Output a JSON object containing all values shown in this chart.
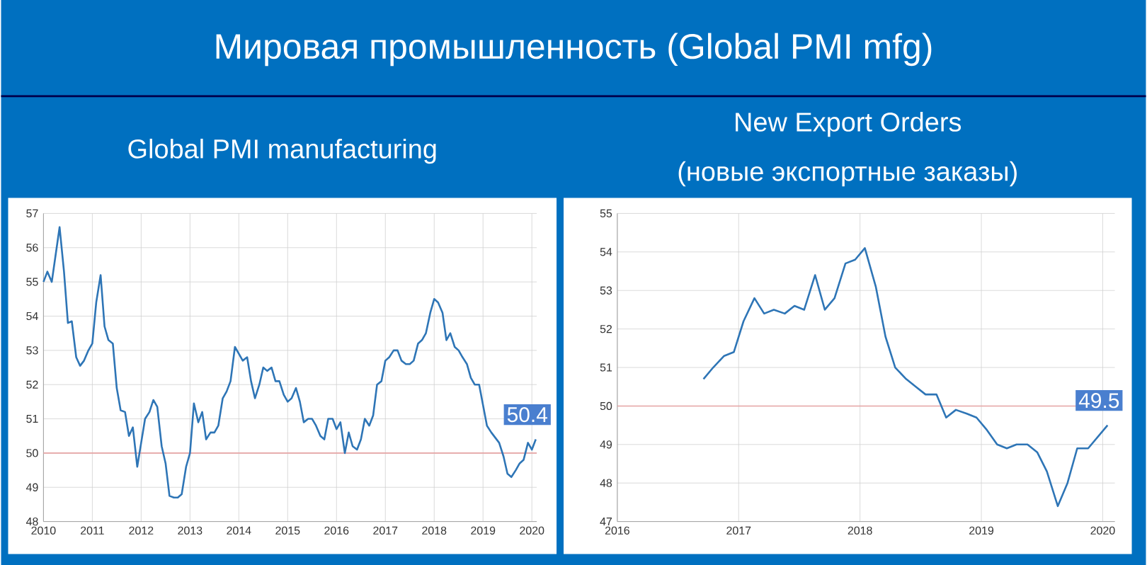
{
  "chart_data": [
    {
      "type": "line",
      "title": "Мировая промышленность (Global PMI mfg)",
      "subtitle": "Global PMI manufacturing",
      "x": [
        2010.0,
        2010.08,
        2010.17,
        2010.25,
        2010.33,
        2010.42,
        2010.5,
        2010.58,
        2010.67,
        2010.75,
        2010.83,
        2010.92,
        2011.0,
        2011.08,
        2011.17,
        2011.25,
        2011.33,
        2011.42,
        2011.5,
        2011.58,
        2011.67,
        2011.75,
        2011.83,
        2011.92,
        2012.0,
        2012.08,
        2012.17,
        2012.25,
        2012.33,
        2012.42,
        2012.5,
        2012.58,
        2012.67,
        2012.75,
        2012.83,
        2012.92,
        2013.0,
        2013.08,
        2013.17,
        2013.25,
        2013.33,
        2013.42,
        2013.5,
        2013.58,
        2013.67,
        2013.75,
        2013.83,
        2013.92,
        2014.0,
        2014.08,
        2014.17,
        2014.25,
        2014.33,
        2014.42,
        2014.5,
        2014.58,
        2014.67,
        2014.75,
        2014.83,
        2014.92,
        2015.0,
        2015.08,
        2015.17,
        2015.25,
        2015.33,
        2015.42,
        2015.5,
        2015.58,
        2015.67,
        2015.75,
        2015.83,
        2015.92,
        2016.0,
        2016.08,
        2016.17,
        2016.25,
        2016.33,
        2016.42,
        2016.5,
        2016.58,
        2016.67,
        2016.75,
        2016.83,
        2016.92,
        2017.0,
        2017.08,
        2017.17,
        2017.25,
        2017.33,
        2017.42,
        2017.5,
        2017.58,
        2017.67,
        2017.75,
        2017.83,
        2017.92,
        2018.0,
        2018.08,
        2018.17,
        2018.25,
        2018.33,
        2018.42,
        2018.5,
        2018.58,
        2018.67,
        2018.75,
        2018.83,
        2018.92,
        2019.0,
        2019.08,
        2019.17,
        2019.25,
        2019.33,
        2019.42,
        2019.5,
        2019.58,
        2019.67,
        2019.75,
        2019.83,
        2019.92,
        2020.0,
        2020.08
      ],
      "series": [
        {
          "color": "#2e75b6",
          "values": [
            55.0,
            55.3,
            55.0,
            55.8,
            56.6,
            55.3,
            53.8,
            53.85,
            52.8,
            52.55,
            52.7,
            53.0,
            53.2,
            54.4,
            55.2,
            53.7,
            53.3,
            53.2,
            51.9,
            51.25,
            51.2,
            50.5,
            50.75,
            49.6,
            50.3,
            51.0,
            51.2,
            51.55,
            51.35,
            50.2,
            49.7,
            48.75,
            48.7,
            48.7,
            48.8,
            49.6,
            50.0,
            51.45,
            50.9,
            51.2,
            50.4,
            50.6,
            50.6,
            50.8,
            51.6,
            51.8,
            52.1,
            53.1,
            52.9,
            52.7,
            52.8,
            52.1,
            51.6,
            52.0,
            52.5,
            52.4,
            52.5,
            52.1,
            52.1,
            51.7,
            51.5,
            51.6,
            51.9,
            51.5,
            50.9,
            51.0,
            51.0,
            50.8,
            50.5,
            50.4,
            51.0,
            51.0,
            50.7,
            50.9,
            50.0,
            50.6,
            50.2,
            50.1,
            50.4,
            51.0,
            50.8,
            51.1,
            52.0,
            52.1,
            52.7,
            52.8,
            53.0,
            53.0,
            52.7,
            52.6,
            52.6,
            52.7,
            53.2,
            53.3,
            53.5,
            54.1,
            54.5,
            54.4,
            54.1,
            53.3,
            53.5,
            53.1,
            53.0,
            52.8,
            52.6,
            52.2,
            52.0,
            52.0,
            51.4,
            50.8,
            50.6,
            50.45,
            50.3,
            49.9,
            49.4,
            49.3,
            49.5,
            49.7,
            49.8,
            50.3,
            50.1,
            50.4
          ]
        }
      ],
      "xlim": [
        2010,
        2020.1
      ],
      "xticks": [
        2010,
        2011,
        2012,
        2013,
        2014,
        2015,
        2016,
        2017,
        2018,
        2019,
        2020
      ],
      "ylim": [
        48,
        57
      ],
      "yticks": [
        48,
        49,
        50,
        51,
        52,
        53,
        54,
        55,
        56,
        57
      ],
      "grid": true,
      "marker": "none",
      "ref_lines": [
        {
          "axis": "y",
          "value": 50,
          "color": "#e6a4a4"
        }
      ],
      "annotations": [
        {
          "text": "50.4",
          "x": 2020.08,
          "y": 50.4
        }
      ]
    },
    {
      "type": "line",
      "title": "New Export Orders",
      "subtitle": "(новые экспортные заказы)",
      "x": [
        2016.71,
        2016.79,
        2016.88,
        2016.96,
        2017.04,
        2017.13,
        2017.21,
        2017.29,
        2017.38,
        2017.46,
        2017.54,
        2017.63,
        2017.71,
        2017.79,
        2017.88,
        2017.96,
        2018.04,
        2018.13,
        2018.21,
        2018.29,
        2018.38,
        2018.46,
        2018.54,
        2018.63,
        2018.71,
        2018.79,
        2018.88,
        2018.96,
        2019.04,
        2019.13,
        2019.21,
        2019.29,
        2019.38,
        2019.46,
        2019.54,
        2019.63,
        2019.71,
        2019.79,
        2019.88,
        2019.96,
        2020.04
      ],
      "series": [
        {
          "color": "#2e75b6",
          "values": [
            50.7,
            51.0,
            51.3,
            51.4,
            52.2,
            52.8,
            52.4,
            52.5,
            52.4,
            52.6,
            52.5,
            53.4,
            52.5,
            52.8,
            53.7,
            53.8,
            54.1,
            53.1,
            51.8,
            51.0,
            50.7,
            50.5,
            50.3,
            50.3,
            49.7,
            49.9,
            49.8,
            49.7,
            49.4,
            49.0,
            48.9,
            49.0,
            49.0,
            48.8,
            48.3,
            47.4,
            48.0,
            48.9,
            48.9,
            49.2,
            49.5
          ]
        }
      ],
      "xlim": [
        2016,
        2020.1
      ],
      "xticks": [
        2016,
        2017,
        2018,
        2019,
        2020
      ],
      "ylim": [
        47,
        55
      ],
      "yticks": [
        47,
        48,
        49,
        50,
        51,
        52,
        53,
        54,
        55
      ],
      "grid": true,
      "marker": "none",
      "ref_lines": [
        {
          "axis": "y",
          "value": 50,
          "color": "#e6a4a4"
        }
      ],
      "annotations": [
        {
          "text": "49.5",
          "x": 2020.04,
          "y": 49.5
        }
      ]
    }
  ]
}
